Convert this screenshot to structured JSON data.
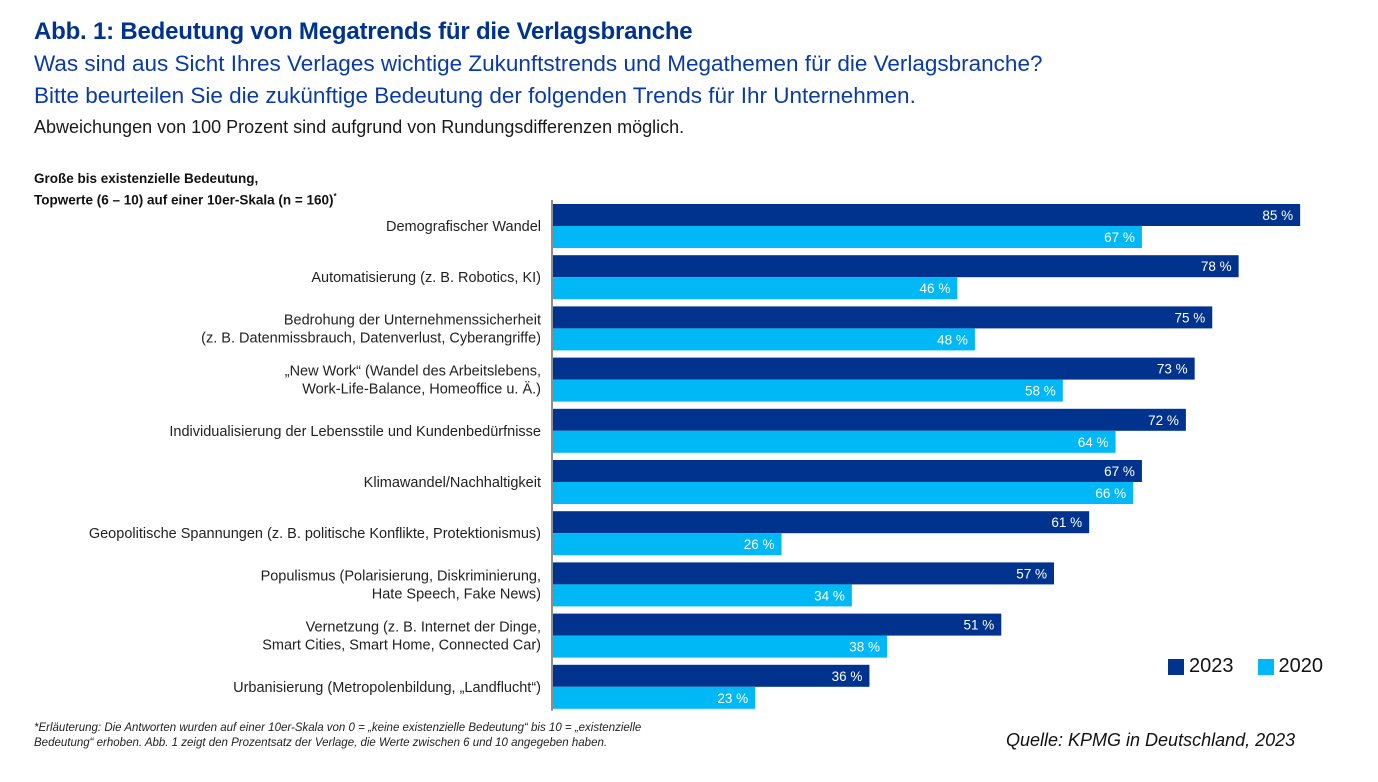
{
  "header": {
    "title": "Abb. 1: Bedeutung von Megatrends für die Verlagsbranche",
    "subtitle_line1": "Was sind aus Sicht Ihres Verlages wichtige Zukunftstrends und Megathemen für die Verlagsbranche?",
    "subtitle_line2": "Bitte beurteilen Sie die zukünftige Bedeutung der folgenden Trends für Ihr Unternehmen.",
    "note": "Abweichungen von 100 Prozent sind aufgrund von Rundungsdifferenzen möglich."
  },
  "axis_caption": {
    "line1": "Große bis existenzielle Bedeutung,",
    "line2": "Topwerte (6 – 10) auf einer 10er-Skala (n = 160)",
    "marker": "*"
  },
  "colors": {
    "series_2023": "#00338d",
    "series_2020": "#00b8f5",
    "axis": "#8c8c8c"
  },
  "chart_data": {
    "type": "bar",
    "orientation": "horizontal",
    "title": "Abb. 1: Bedeutung von Megatrends für die Verlagsbranche",
    "xlabel": "",
    "ylabel": "",
    "xlim": [
      0,
      100
    ],
    "grid": false,
    "legend_position": "bottom-right",
    "value_suffix": " %",
    "categories": [
      [
        "Demografischer Wandel"
      ],
      [
        "Automatisierung (z. B. Robotics, KI)"
      ],
      [
        "Bedrohung der Unternehmenssicherheit",
        "(z. B. Datenmissbrauch, Datenverlust, Cyberangriffe)"
      ],
      [
        "„New Work“ (Wandel des Arbeitslebens,",
        "Work-Life-Balance, Homeoffice u. Ä.)"
      ],
      [
        "Individualisierung der Lebensstile und Kundenbedürfnisse"
      ],
      [
        "Klimawandel/Nachhaltigkeit"
      ],
      [
        "Geopolitische Spannungen (z. B. politische Konflikte, Protektionismus)"
      ],
      [
        "Populismus (Polarisierung, Diskriminierung,",
        "Hate Speech, Fake News)"
      ],
      [
        "Vernetzung (z. B. Internet der Dinge,",
        "Smart Cities, Smart Home, Connected Car)"
      ],
      [
        "Urbanisierung (Metropolenbildung, „Landflucht“)"
      ]
    ],
    "series": [
      {
        "name": "2023",
        "values": [
          85,
          78,
          75,
          73,
          72,
          67,
          61,
          57,
          51,
          36
        ]
      },
      {
        "name": "2020",
        "values": [
          67,
          46,
          48,
          58,
          64,
          66,
          26,
          34,
          38,
          23
        ]
      }
    ]
  },
  "legend": [
    {
      "label": "2023"
    },
    {
      "label": "2020"
    }
  ],
  "footnote": {
    "line1": "*Erläuterung: Die Antworten wurden auf einer 10er-Skala von 0 = „keine existenzielle Bedeutung“ bis 10 = „existenzielle",
    "line2": "Bedeutung“ erhoben. Abb. 1 zeigt den Prozentsatz der Verlage, die Werte zwischen 6 und 10 angegeben haben."
  },
  "source": "Quelle: KPMG in Deutschland, 2023"
}
